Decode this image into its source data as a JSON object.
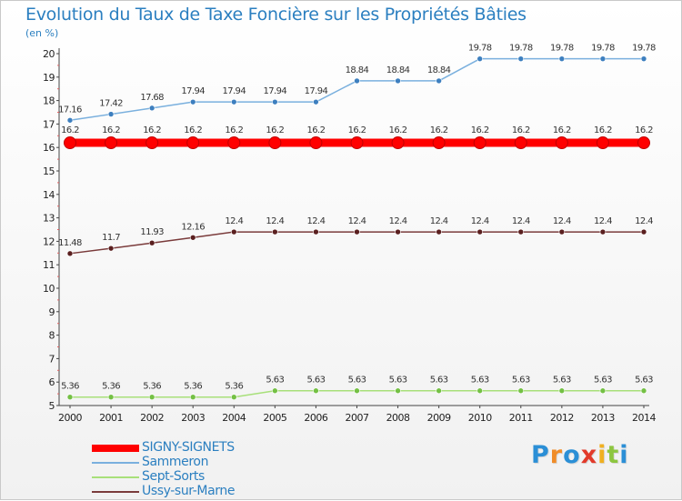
{
  "chart_data": {
    "type": "line",
    "title": "Evolution du Taux de Taxe Foncière sur les Propriétés Bâties",
    "ylabel": "(en %)",
    "xlabel": "",
    "x": [
      "2000",
      "2001",
      "2002",
      "2003",
      "2004",
      "2005",
      "2006",
      "2007",
      "2008",
      "2009",
      "2010",
      "2011",
      "2012",
      "2013",
      "2014"
    ],
    "ylim": [
      5,
      20
    ],
    "yticks": [
      5,
      6,
      7,
      8,
      9,
      10,
      11,
      12,
      13,
      14,
      15,
      16,
      17,
      18,
      19,
      20
    ],
    "legend_position": "bottom-left",
    "series": [
      {
        "name": "SIGNY-SIGNETS",
        "color": "#ff0000",
        "marker_color": "#ff0000",
        "emphasis": true,
        "values": [
          16.2,
          16.2,
          16.2,
          16.2,
          16.2,
          16.2,
          16.2,
          16.2,
          16.2,
          16.2,
          16.2,
          16.2,
          16.2,
          16.2,
          16.2
        ],
        "labels": [
          "16.2",
          "16.2",
          "16.2",
          "16.2",
          "16.2",
          "16.2",
          "16.2",
          "16.2",
          "16.2",
          "16.2",
          "16.2",
          "16.2",
          "16.2",
          "16.2",
          "16.2"
        ]
      },
      {
        "name": "Sammeron",
        "color": "#7ab0de",
        "marker_color": "#3d7fbf",
        "emphasis": false,
        "values": [
          17.16,
          17.42,
          17.68,
          17.94,
          17.94,
          17.94,
          17.94,
          18.84,
          18.84,
          18.84,
          19.78,
          19.78,
          19.78,
          19.78,
          19.78
        ],
        "labels": [
          "17.16",
          "17.42",
          "17.68",
          "17.94",
          "17.94",
          "17.94",
          "17.94",
          "18.84",
          "18.84",
          "18.84",
          "19.78",
          "19.78",
          "19.78",
          "19.78",
          "19.78"
        ]
      },
      {
        "name": "Sept-Sorts",
        "color": "#a8e07a",
        "marker_color": "#74c044",
        "emphasis": false,
        "values": [
          5.36,
          5.36,
          5.36,
          5.36,
          5.36,
          5.63,
          5.63,
          5.63,
          5.63,
          5.63,
          5.63,
          5.63,
          5.63,
          5.63,
          5.63
        ],
        "labels": [
          "5.36",
          "5.36",
          "5.36",
          "5.36",
          "5.36",
          "5.63",
          "5.63",
          "5.63",
          "5.63",
          "5.63",
          "5.63",
          "5.63",
          "5.63",
          "5.63",
          "5.63"
        ]
      },
      {
        "name": "Ussy-sur-Marne",
        "color": "#7a3b3b",
        "marker_color": "#5a1f1f",
        "emphasis": false,
        "values": [
          11.48,
          11.7,
          11.93,
          12.16,
          12.4,
          12.4,
          12.4,
          12.4,
          12.4,
          12.4,
          12.4,
          12.4,
          12.4,
          12.4,
          12.4
        ],
        "labels": [
          "11.48",
          "11.7",
          "11.93",
          "12.16",
          "12.4",
          "12.4",
          "12.4",
          "12.4",
          "12.4",
          "12.4",
          "12.4",
          "12.4",
          "12.4",
          "12.4",
          "12.4"
        ]
      }
    ]
  },
  "logo": {
    "letters": [
      "P",
      "r",
      "o",
      "x",
      "i",
      "t",
      "i"
    ],
    "colors": [
      "#2b8fd6",
      "#f08c28",
      "#2b8fd6",
      "#e23a2a",
      "#f0b020",
      "#8dc63f",
      "#2b8fd6"
    ]
  }
}
